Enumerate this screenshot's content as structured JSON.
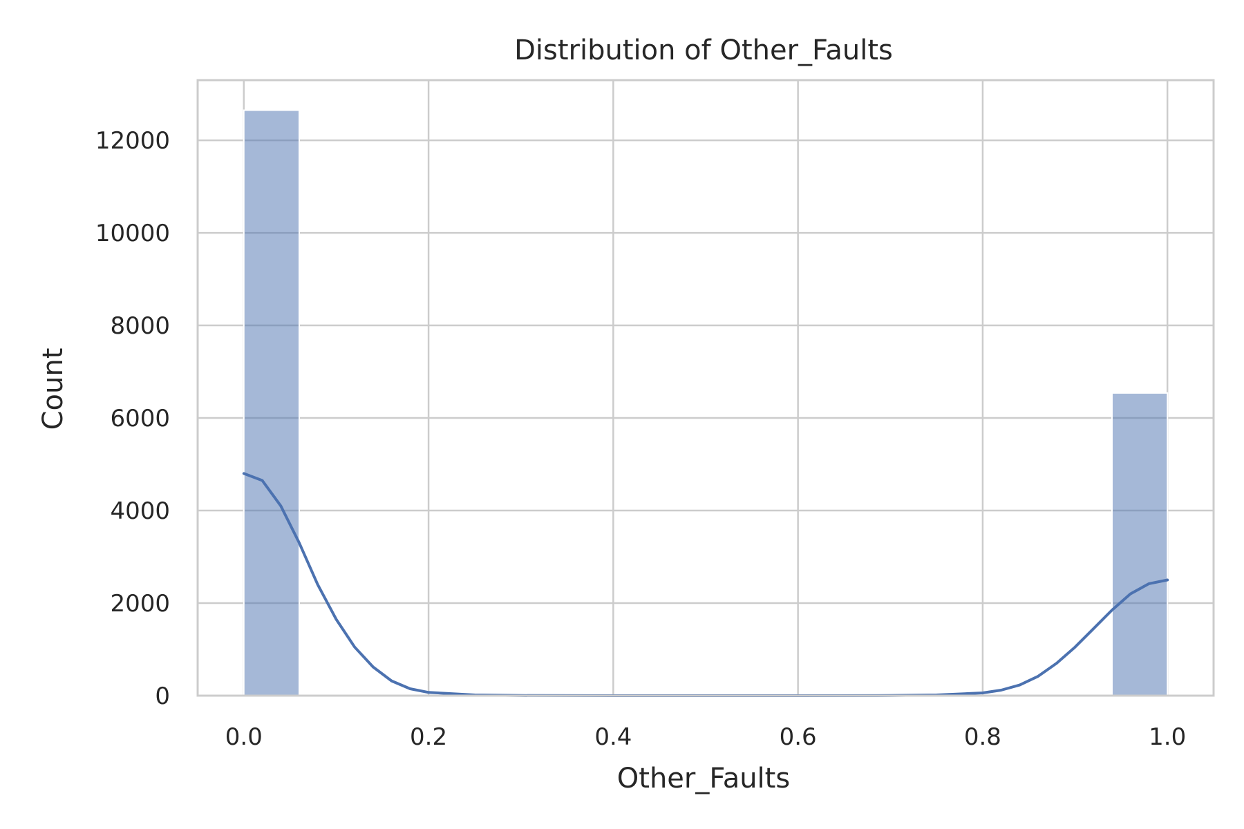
{
  "chart_data": {
    "type": "bar",
    "title": "Distribution of Other_Faults",
    "xlabel": "Other_Faults",
    "ylabel": "Count",
    "xlim": [
      -0.05,
      1.05
    ],
    "ylim": [
      0,
      13300
    ],
    "x_ticks": [
      0.0,
      0.2,
      0.4,
      0.6,
      0.8,
      1.0
    ],
    "x_tick_labels": [
      "0.0",
      "0.2",
      "0.4",
      "0.6",
      "0.8",
      "1.0"
    ],
    "y_ticks": [
      0,
      2000,
      4000,
      6000,
      8000,
      10000,
      12000
    ],
    "y_tick_labels": [
      "0",
      "2000",
      "4000",
      "6000",
      "8000",
      "10000",
      "12000"
    ],
    "bins": [
      {
        "x0": 0.0,
        "x1": 0.06,
        "count": 12650
      },
      {
        "x0": 0.94,
        "x1": 1.0,
        "count": 6540
      }
    ],
    "kde": {
      "x": [
        0.0,
        0.02,
        0.04,
        0.06,
        0.08,
        0.1,
        0.12,
        0.14,
        0.16,
        0.18,
        0.2,
        0.25,
        0.3,
        0.4,
        0.5,
        0.6,
        0.7,
        0.75,
        0.8,
        0.82,
        0.84,
        0.86,
        0.88,
        0.9,
        0.92,
        0.94,
        0.96,
        0.98,
        1.0
      ],
      "y": [
        4800,
        4650,
        4100,
        3300,
        2400,
        1650,
        1050,
        620,
        320,
        150,
        70,
        15,
        3,
        0,
        0,
        0,
        3,
        15,
        60,
        120,
        230,
        420,
        700,
        1050,
        1450,
        1850,
        2200,
        2420,
        2500
      ]
    },
    "grid": true,
    "legend": "none",
    "colors": {
      "bar": "#4c72b0",
      "bar_opacity": 0.5,
      "kde_line": "#4c72b0",
      "grid": "#cccccc",
      "spine": "#cccccc",
      "text": "#262626",
      "background": "#ffffff"
    }
  }
}
